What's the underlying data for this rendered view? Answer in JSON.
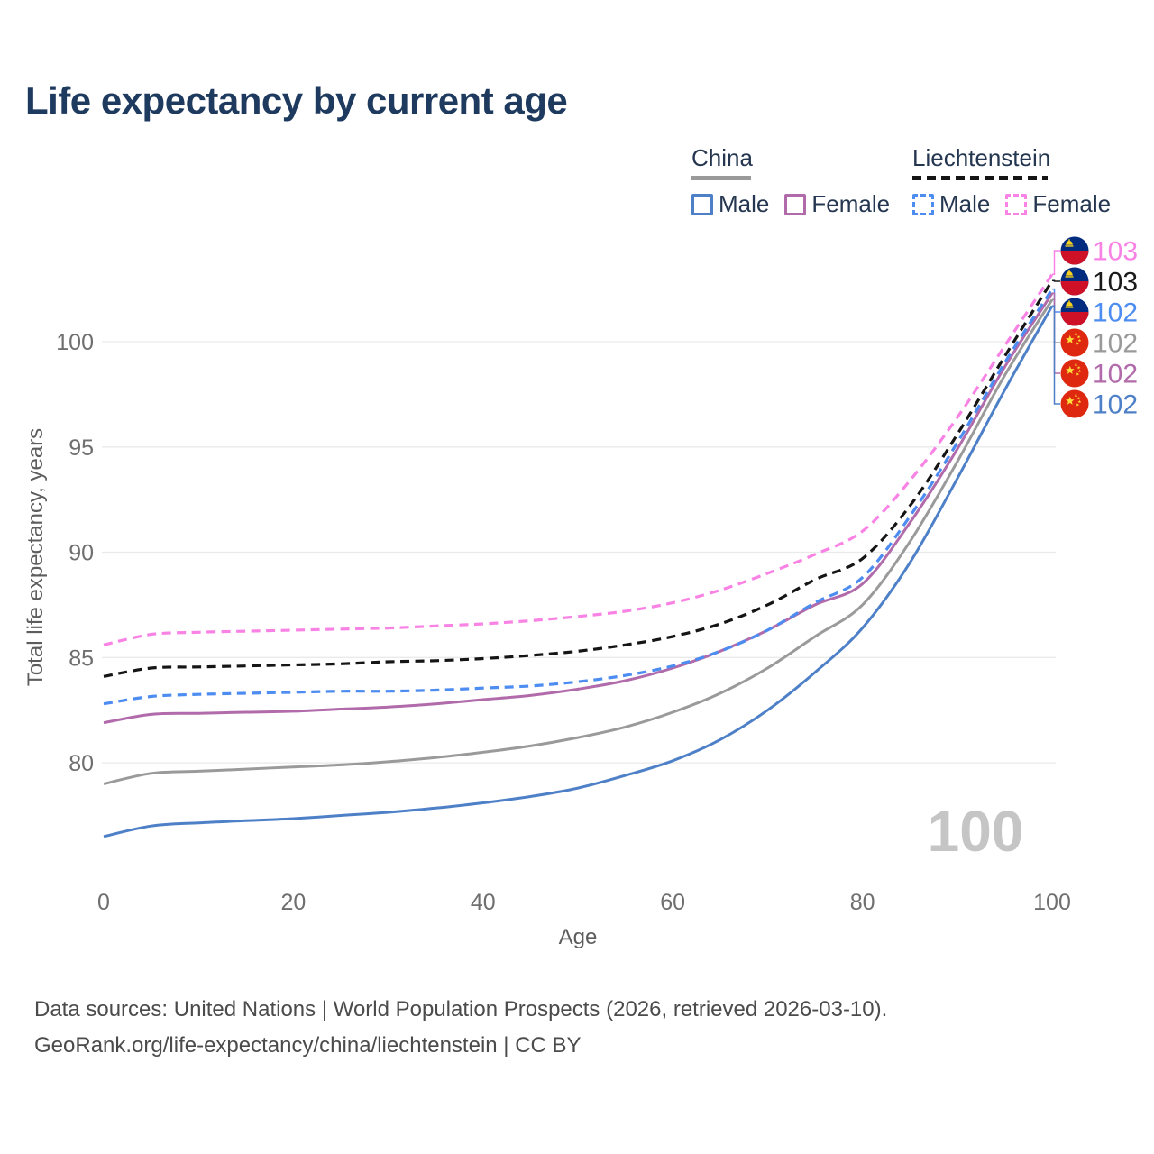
{
  "title": "Life expectancy by current age",
  "legend": {
    "groups": [
      {
        "name": "China",
        "line_style": "solid",
        "underline_color": "#9a9a9a",
        "items": [
          {
            "label": "Male",
            "color": "#4e80c8"
          },
          {
            "label": "Female",
            "color": "#b16aaa"
          }
        ]
      },
      {
        "name": "Liechtenstein",
        "line_style": "dashed",
        "underline_color": "#151515",
        "items": [
          {
            "label": "Male",
            "color": "#4d8cf0"
          },
          {
            "label": "Female",
            "color": "#f983e5"
          }
        ]
      }
    ]
  },
  "chart_data": {
    "type": "line",
    "title": "Life expectancy by current age",
    "xlabel": "Age",
    "ylabel": "Total life expectancy, years",
    "xticks": [
      0,
      20,
      40,
      60,
      80,
      100
    ],
    "yticks": [
      80,
      85,
      90,
      95,
      100
    ],
    "xlim": [
      0,
      100
    ],
    "ylim": [
      76,
      104
    ],
    "grid": "horizontal-only",
    "legend_position": "top-right",
    "x": [
      0,
      5,
      10,
      15,
      20,
      25,
      30,
      35,
      40,
      45,
      50,
      55,
      60,
      65,
      70,
      75,
      80,
      85,
      90,
      95,
      100
    ],
    "series": [
      {
        "name": "China",
        "country": "China",
        "sex": "Both",
        "color": "#9a9a9a",
        "dash": false,
        "values": [
          79.0,
          79.5,
          79.6,
          79.7,
          79.8,
          79.9,
          80.05,
          80.25,
          80.5,
          80.8,
          81.2,
          81.7,
          82.4,
          83.3,
          84.5,
          86.0,
          87.5,
          90.5,
          94.3,
          98.4,
          102.0
        ]
      },
      {
        "name": "China Male",
        "country": "China",
        "sex": "Male",
        "color": "#4e80c8",
        "dash": false,
        "values": [
          76.5,
          77.0,
          77.15,
          77.25,
          77.35,
          77.5,
          77.65,
          77.85,
          78.1,
          78.4,
          78.8,
          79.4,
          80.1,
          81.1,
          82.5,
          84.3,
          86.4,
          89.5,
          93.5,
          97.7,
          101.7
        ]
      },
      {
        "name": "China Female",
        "country": "China",
        "sex": "Female",
        "color": "#b16aaa",
        "dash": false,
        "values": [
          81.9,
          82.3,
          82.35,
          82.4,
          82.45,
          82.55,
          82.65,
          82.8,
          83.0,
          83.2,
          83.5,
          83.9,
          84.5,
          85.3,
          86.3,
          87.5,
          88.5,
          91.4,
          94.9,
          98.8,
          102.3
        ]
      },
      {
        "name": "Liechtenstein Male",
        "country": "Liechtenstein",
        "sex": "Male",
        "color": "#4d8cf0",
        "dash": true,
        "values": [
          82.8,
          83.15,
          83.25,
          83.3,
          83.35,
          83.4,
          83.4,
          83.45,
          83.55,
          83.65,
          83.85,
          84.15,
          84.6,
          85.3,
          86.3,
          87.6,
          88.8,
          91.7,
          95.2,
          99.0,
          102.5
        ]
      },
      {
        "name": "Liechtenstein",
        "country": "Liechtenstein",
        "sex": "Both",
        "color": "#151515",
        "dash": true,
        "values": [
          84.1,
          84.5,
          84.55,
          84.6,
          84.65,
          84.7,
          84.8,
          84.85,
          84.95,
          85.1,
          85.3,
          85.6,
          86.0,
          86.6,
          87.5,
          88.7,
          89.7,
          92.2,
          95.6,
          99.3,
          102.9
        ]
      },
      {
        "name": "Liechtenstein Female",
        "country": "Liechtenstein",
        "sex": "Female",
        "color": "#f983e5",
        "dash": true,
        "values": [
          85.6,
          86.1,
          86.2,
          86.25,
          86.3,
          86.35,
          86.4,
          86.5,
          86.6,
          86.75,
          86.95,
          87.2,
          87.6,
          88.2,
          89.0,
          89.9,
          91.0,
          93.4,
          96.4,
          99.8,
          103.2
        ]
      }
    ],
    "age_cursor_watermark": "100"
  },
  "end_labels": [
    {
      "series": "Liechtenstein Female",
      "label": "103",
      "color": "#f983e5",
      "flag": "liechtenstein"
    },
    {
      "series": "Liechtenstein",
      "label": "103",
      "color": "#1a1a1a",
      "flag": "liechtenstein"
    },
    {
      "series": "Liechtenstein Male",
      "label": "102",
      "color": "#4d8cf0",
      "flag": "liechtenstein"
    },
    {
      "series": "China",
      "label": "102",
      "color": "#9a9a9a",
      "flag": "china"
    },
    {
      "series": "China Female",
      "label": "102",
      "color": "#b16aaa",
      "flag": "china"
    },
    {
      "series": "China Male",
      "label": "102",
      "color": "#4e80c8",
      "flag": "china"
    }
  ],
  "footer": {
    "line1": "Data sources: United Nations | World Population Prospects (2026, retrieved 2026-03-10).",
    "line2": "GeoRank.org/life-expectancy/china/liechtenstein | CC BY"
  }
}
